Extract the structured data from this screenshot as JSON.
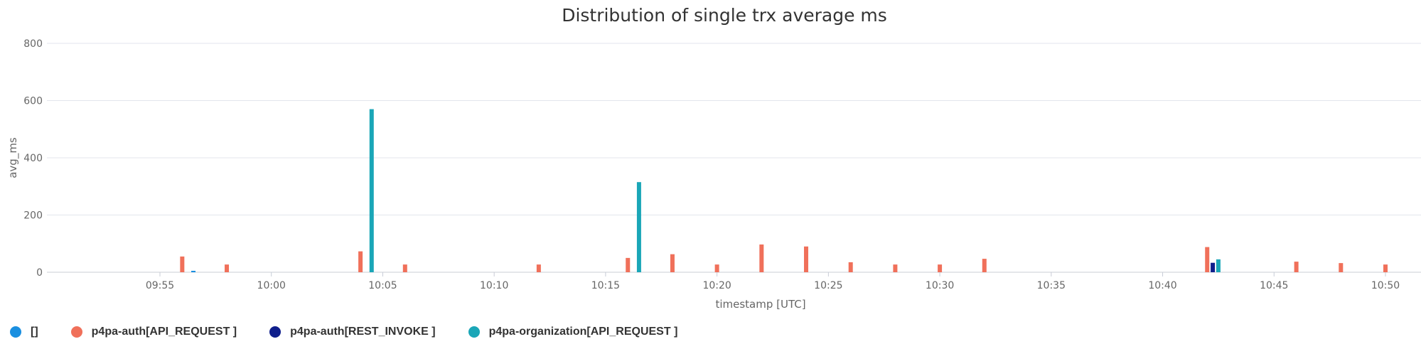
{
  "chart_data": {
    "type": "bar",
    "title": "Distribution of single trx average ms",
    "xlabel": "timestamp [UTC]",
    "ylabel": "avg_ms",
    "ylim": [
      0,
      800
    ],
    "yticks": [
      "0",
      "200",
      "400",
      "600",
      "800"
    ],
    "xticks": [
      "09:55",
      "10:00",
      "10:05",
      "10:10",
      "10:15",
      "10:20",
      "10:25",
      "10:30",
      "10:35",
      "10:40",
      "10:45",
      "10:50"
    ],
    "grid": true,
    "legend_position": "bottom-left",
    "series": [
      {
        "name": "[]",
        "color": "#1a8fe0",
        "points": [
          {
            "x": "09:56:30",
            "y": 5
          }
        ]
      },
      {
        "name": "p4pa-auth[API_REQUEST ]",
        "color": "#f0705a",
        "points": [
          {
            "x": "09:56:00",
            "y": 55
          },
          {
            "x": "09:58:00",
            "y": 27
          },
          {
            "x": "10:04:00",
            "y": 73
          },
          {
            "x": "10:06:00",
            "y": 27
          },
          {
            "x": "10:12:00",
            "y": 27
          },
          {
            "x": "10:16:00",
            "y": 50
          },
          {
            "x": "10:18:00",
            "y": 63
          },
          {
            "x": "10:20:00",
            "y": 27
          },
          {
            "x": "10:22:00",
            "y": 97
          },
          {
            "x": "10:24:00",
            "y": 90
          },
          {
            "x": "10:26:00",
            "y": 35
          },
          {
            "x": "10:28:00",
            "y": 27
          },
          {
            "x": "10:30:00",
            "y": 27
          },
          {
            "x": "10:32:00",
            "y": 47
          },
          {
            "x": "10:42:00",
            "y": 88
          },
          {
            "x": "10:46:00",
            "y": 37
          },
          {
            "x": "10:48:00",
            "y": 32
          },
          {
            "x": "10:50:00",
            "y": 27
          }
        ]
      },
      {
        "name": "p4pa-auth[REST_INVOKE ]",
        "color": "#0f1f8c",
        "points": [
          {
            "x": "10:42:15",
            "y": 33
          }
        ]
      },
      {
        "name": "p4pa-organization[API_REQUEST ]",
        "color": "#1aa6b7",
        "points": [
          {
            "x": "10:04:30",
            "y": 570
          },
          {
            "x": "10:16:30",
            "y": 315
          },
          {
            "x": "10:42:30",
            "y": 45
          }
        ]
      }
    ]
  }
}
